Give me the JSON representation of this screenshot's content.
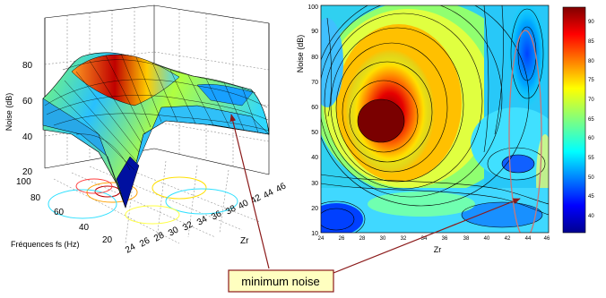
{
  "chart_data": [
    {
      "type": "surface",
      "zlabel": "Noise (dB)",
      "ylabel": "Fréquences fs (Hz)",
      "xlabel": "Zr",
      "z_ticks": [
        20,
        40,
        60,
        80
      ],
      "y_ticks": [
        20,
        40,
        60,
        80,
        100
      ],
      "x_ticks": [
        24,
        26,
        28,
        30,
        32,
        34,
        36,
        38,
        40,
        42,
        44,
        46
      ],
      "zlim": [
        20,
        90
      ],
      "ylim": [
        10,
        100
      ],
      "xlim": [
        24,
        46
      ]
    },
    {
      "type": "heatmap",
      "ylabel": "Noise (dB)",
      "xlabel": "Zr",
      "y_ticks": [
        10,
        20,
        30,
        40,
        50,
        60,
        70,
        80,
        90,
        100
      ],
      "x_ticks": [
        24,
        26,
        28,
        30,
        32,
        34,
        36,
        38,
        40,
        42,
        44,
        46
      ],
      "xlim": [
        24,
        46
      ],
      "ylim": [
        10,
        100
      ],
      "colorbar_ticks": [
        40,
        45,
        50,
        55,
        60,
        65,
        70,
        75,
        80,
        85,
        90
      ],
      "colorbar_range": [
        36,
        94
      ],
      "colormap": "jet",
      "peak_region": {
        "x": 29,
        "y": 55,
        "value": 92
      },
      "minimum_region": {
        "x": 44,
        "y": 30
      },
      "highlight": {
        "shape": "ellipse",
        "color": "#c87878"
      }
    }
  ],
  "annotation": {
    "label": "minimum noise",
    "box_fill": "#ffffc0",
    "border_color": "#8b1a1a",
    "arrow_color": "#8b1a1a"
  }
}
